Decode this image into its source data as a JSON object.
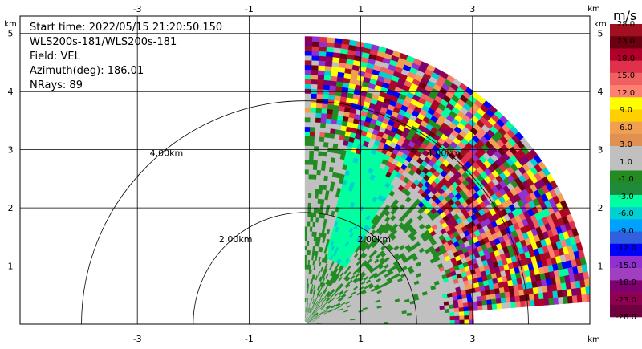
{
  "info": {
    "start_time": "Start time: 2022/05/15 21:20:50.150",
    "instrument": "WLS200s-181/WLS200s-181",
    "field": "Field: VEL",
    "azimuth": "Azimuth(deg): 186.01",
    "nrays": "NRays: 89"
  },
  "axes": {
    "x_unit": "km",
    "y_unit": "km",
    "x_ticks": [
      "-3",
      "-1",
      "1",
      "3"
    ],
    "x_tick_values": [
      -3,
      -1,
      1,
      3
    ],
    "y_ticks": [
      "1",
      "2",
      "3",
      "4",
      "5"
    ],
    "y_tick_values": [
      1,
      2,
      3,
      4,
      5
    ],
    "xlim": [
      -5.1,
      5.1
    ],
    "ylim": [
      0,
      5.3
    ]
  },
  "range_rings": [
    {
      "radius_km": 2.0,
      "label": "2.00km"
    },
    {
      "radius_km": 4.0,
      "label": "4.00km"
    }
  ],
  "colorbar": {
    "unit": "m/s",
    "labels": [
      "28.0",
      "23.0",
      "18.0",
      "15.0",
      "12.0",
      "9.0",
      "6.0",
      "3.0",
      "1.0",
      "-1.0",
      "-3.0",
      "-6.0",
      "-9.0",
      "-12.0",
      "-15.0",
      "-18.0",
      "-23.0",
      "-28.0"
    ],
    "colors": [
      "#a01020",
      "#6a0010",
      "#b0002a",
      "#e0304a",
      "#f06060",
      "#ff8070",
      "#ffff00",
      "#ffd000",
      "#f0a050",
      "#e09050",
      "#c0c0c0",
      "#c0c0c0",
      "#228b22",
      "#1e8a3a",
      "#00ffa0",
      "#00d0d0",
      "#00a0ff",
      "#3060e0",
      "#0000ff",
      "#9030d0",
      "#a040c0",
      "#800070",
      "#900050",
      "#700040"
    ]
  }
}
